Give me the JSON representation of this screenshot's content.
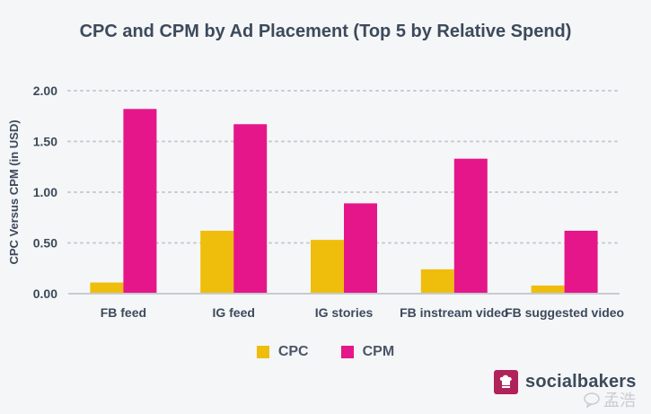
{
  "chart_data": {
    "type": "bar",
    "title": "CPC and CPM by Ad Placement (Top 5 by Relative Spend)",
    "xlabel": "",
    "ylabel": "CPC Versus CPM (in USD)",
    "ylim": [
      0,
      2.0
    ],
    "yticks": [
      "0.00",
      "0.50",
      "1.00",
      "1.50",
      "2.00"
    ],
    "ytick_values": [
      0,
      0.5,
      1.0,
      1.5,
      2.0
    ],
    "grid": true,
    "legend_position": "bottom",
    "categories": [
      "FB feed",
      "IG feed",
      "IG stories",
      "FB instream video",
      "FB suggested video"
    ],
    "series": [
      {
        "name": "CPC",
        "color": "#efbd0c",
        "values": [
          0.11,
          0.62,
          0.53,
          0.24,
          0.08
        ]
      },
      {
        "name": "CPM",
        "color": "#e5168a",
        "values": [
          1.82,
          1.67,
          0.89,
          1.33,
          0.62
        ]
      }
    ]
  },
  "brand": {
    "name": "socialbakers",
    "watermark": "孟浩"
  }
}
